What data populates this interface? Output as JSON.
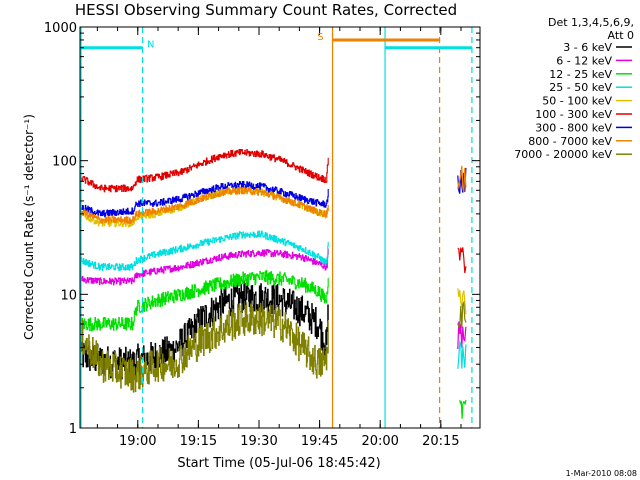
{
  "chart_data": {
    "type": "line",
    "title": "HESSI Observing Summary Count Rates, Corrected",
    "xlabel": "Start Time (05-Jul-06 18:45:42)",
    "ylabel": "Corrected Count Rate (s⁻¹ detector⁻¹)",
    "yscale": "log",
    "ylim": [
      1,
      1000
    ],
    "xlim_minutes": [
      0,
      99
    ],
    "x_tick_labels": [
      "19:00",
      "19:15",
      "19:30",
      "19:45",
      "20:00",
      "20:15"
    ],
    "x_tick_minutes": [
      14.3,
      29.3,
      44.3,
      59.3,
      74.3,
      89.3
    ],
    "y_tick_labels": [
      "1",
      "10",
      "100",
      "1000"
    ],
    "y_tick_values": [
      1,
      10,
      100,
      1000
    ],
    "timestamp": "1-Mar-2010 08:08",
    "legend_header": [
      "Det 1,3,4,5,6,9,",
      "Att 0"
    ],
    "legend_position": "right",
    "series": [
      {
        "name": "3 - 6 keV",
        "color": "#000000",
        "x": [
          0,
          5,
          13,
          14,
          17,
          19,
          23,
          27,
          30,
          35,
          40,
          45,
          50,
          55,
          59,
          61,
          61.5
        ],
        "y": [
          3.5,
          3.2,
          3.0,
          3.2,
          3.3,
          3.5,
          3.8,
          5,
          6.5,
          8.5,
          9.5,
          9.5,
          9,
          7.5,
          6,
          4,
          9
        ]
      },
      {
        "name": "6 - 12 keV",
        "color": "#e000e0",
        "x": [
          0,
          5,
          13,
          14,
          19,
          25,
          30,
          35,
          40,
          45,
          50,
          55,
          59,
          61,
          61.5
        ],
        "y": [
          13,
          12.5,
          12.5,
          14,
          15,
          16,
          17.5,
          19,
          20,
          20.5,
          20,
          19,
          17,
          16,
          22
        ]
      },
      {
        "name": "12 - 25 keV",
        "color": "#00e000",
        "x": [
          0,
          13,
          14,
          19,
          25,
          30,
          35,
          40,
          45,
          50,
          55,
          59,
          61,
          61.5
        ],
        "y": [
          6,
          6,
          8,
          9,
          10,
          11,
          12,
          13,
          13.5,
          13,
          12,
          10.5,
          9,
          15
        ]
      },
      {
        "name": "25 - 50 keV",
        "color": "#00e0e0",
        "x": [
          0,
          5,
          13,
          14,
          19,
          25,
          30,
          35,
          40,
          45,
          50,
          55,
          59,
          61,
          61.5
        ],
        "y": [
          18,
          16,
          16,
          18,
          20,
          22,
          24,
          26,
          28,
          28,
          25,
          22,
          19,
          17,
          25
        ]
      },
      {
        "name": "50 - 100 keV",
        "color": "#e0c000",
        "x": [
          0,
          5,
          13,
          14,
          19,
          25,
          30,
          35,
          40,
          45,
          50,
          55,
          59,
          61,
          61.5
        ],
        "y": [
          40,
          34,
          34,
          38,
          40,
          45,
          52,
          58,
          60,
          58,
          52,
          46,
          41,
          38,
          45
        ]
      },
      {
        "name": "100 - 300 keV",
        "color": "#e00000",
        "x": [
          0,
          5,
          13,
          14,
          19,
          25,
          30,
          35,
          40,
          45,
          50,
          55,
          59,
          61,
          61.5
        ],
        "y": [
          75,
          62,
          62,
          72,
          75,
          82,
          95,
          110,
          115,
          112,
          100,
          85,
          75,
          72,
          115
        ]
      },
      {
        "name": "300 - 800 keV",
        "color": "#0000e0",
        "x": [
          0,
          5,
          13,
          14,
          19,
          25,
          30,
          35,
          40,
          45,
          50,
          55,
          59,
          61,
          61.5
        ],
        "y": [
          45,
          40,
          42,
          48,
          48,
          52,
          58,
          64,
          66,
          64,
          58,
          52,
          48,
          47,
          60
        ]
      },
      {
        "name": "800 - 7000 keV",
        "color": "#f08000",
        "x": [
          0,
          5,
          13,
          14,
          19,
          25,
          30,
          35,
          40,
          45,
          50,
          55,
          59,
          61,
          61.5
        ],
        "y": [
          42,
          36,
          36,
          40,
          42,
          46,
          52,
          58,
          60,
          58,
          52,
          46,
          41,
          40,
          48
        ]
      },
      {
        "name": "7000 - 20000 keV",
        "color": "#808000",
        "x": [
          0,
          5,
          13,
          14,
          17,
          19,
          23,
          27,
          30,
          35,
          40,
          45,
          50,
          55,
          59,
          61,
          61.5
        ],
        "y": [
          5,
          3,
          2.5,
          2.5,
          2.8,
          3,
          3,
          3.8,
          4.5,
          5.5,
          6.5,
          6.5,
          6,
          4,
          3,
          3.2,
          6
        ]
      }
    ],
    "late_segments": [
      {
        "name": "100 - 300 keV",
        "x": [
          93.5,
          95.5
        ],
        "y": [
          20,
          18
        ]
      },
      {
        "name": "300 - 800 keV",
        "x": [
          93.5,
          95.5
        ],
        "y": [
          70,
          72
        ]
      },
      {
        "name": "800 - 7000 keV",
        "x": [
          93.5,
          95.5
        ],
        "y": [
          75,
          74
        ]
      },
      {
        "name": "50 - 100 keV",
        "x": [
          93.5,
          95.5
        ],
        "y": [
          9,
          9
        ]
      },
      {
        "name": "6 - 12 keV",
        "x": [
          93.5,
          95.5
        ],
        "y": [
          5,
          5
        ]
      },
      {
        "name": "25 - 50 keV",
        "x": [
          93.5,
          95.5
        ],
        "y": [
          3.5,
          3.5
        ]
      },
      {
        "name": "12 - 25 keV",
        "x": [
          94,
          95.5
        ],
        "y": [
          1.3,
          1.8
        ]
      },
      {
        "name": "7000 - 20000 keV",
        "x": [
          93.5,
          95.5
        ],
        "y": [
          7,
          7
        ]
      }
    ],
    "intervals": [
      {
        "label": "N",
        "color": "#00e0e0",
        "level": 700,
        "x0": 0,
        "x1": 15.5,
        "label_x": 17.5
      },
      {
        "label": "S",
        "color": "#f08000",
        "level": 800,
        "x0": 62.5,
        "x1": 89,
        "label_x": 59.5
      },
      {
        "label": "",
        "color": "#00e0e0",
        "level": 700,
        "x0": 75.5,
        "x1": 97,
        "label_x": 0
      }
    ],
    "vlines": [
      {
        "color": "#00e0e0",
        "x": 15.5,
        "style": "dashed"
      },
      {
        "color": "#f08000",
        "x": 62.5,
        "style": "solid"
      },
      {
        "color": "#00e0e0",
        "x": 75.5,
        "style": "solid"
      },
      {
        "color": "#f08000",
        "x": 89,
        "style": "dashed"
      },
      {
        "color": "#00e0e0",
        "x": 97,
        "style": "dashed"
      }
    ]
  }
}
